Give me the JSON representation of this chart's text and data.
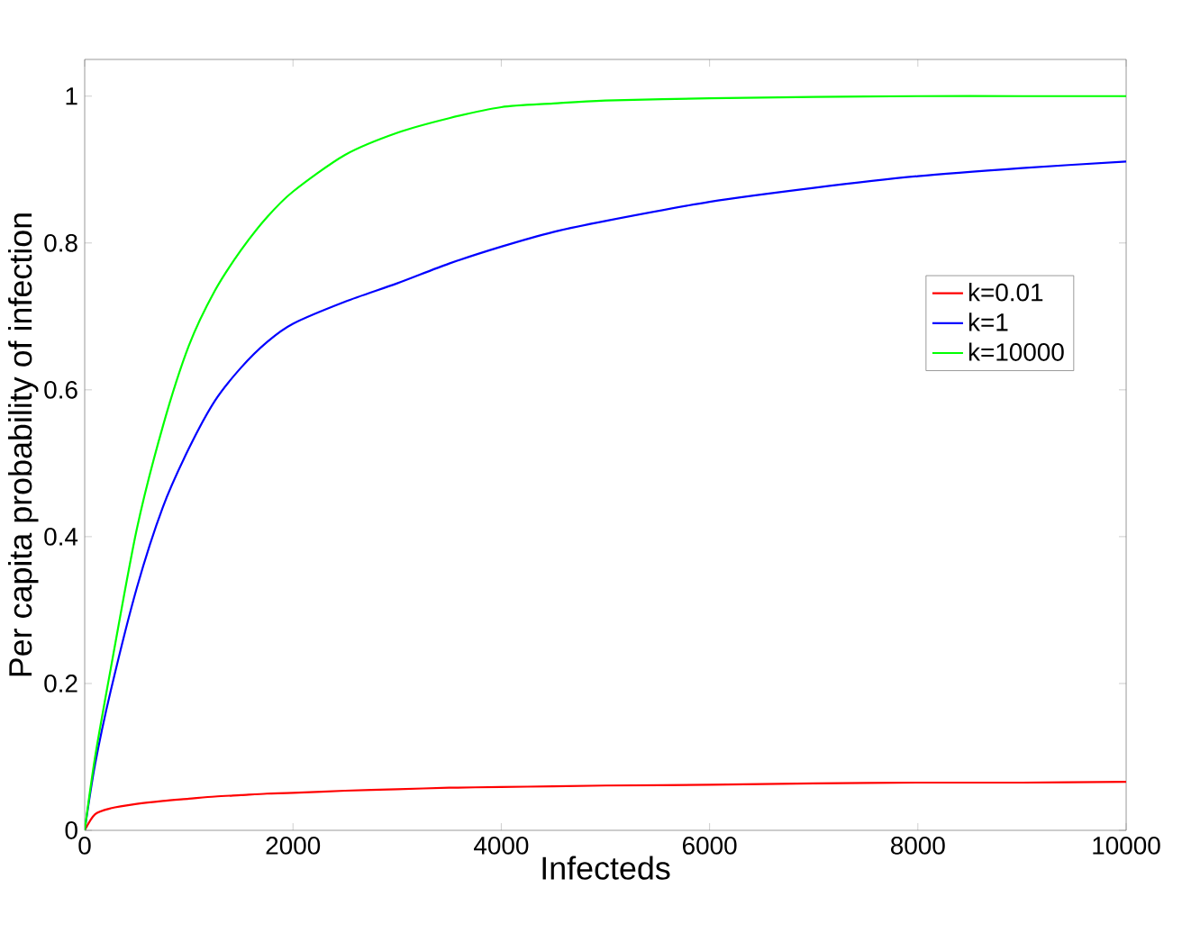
{
  "chart_data": {
    "type": "line",
    "xlabel": "Infecteds",
    "ylabel": "Per capita probability of infection",
    "x": [
      0,
      100,
      250,
      500,
      750,
      1000,
      1250,
      1500,
      1750,
      2000,
      2500,
      3000,
      3500,
      4000,
      4500,
      5000,
      6000,
      7000,
      8000,
      9000,
      10000
    ],
    "series": [
      {
        "name": "k=0.01",
        "color": "#ff0000",
        "values": [
          0,
          0.022,
          0.03,
          0.036,
          0.04,
          0.043,
          0.046,
          0.048,
          0.05,
          0.051,
          0.054,
          0.056,
          0.058,
          0.059,
          0.06,
          0.061,
          0.062,
          0.064,
          0.065,
          0.065,
          0.066
        ]
      },
      {
        "name": "k=1",
        "color": "#0000ff",
        "values": [
          0,
          0.09,
          0.19,
          0.33,
          0.44,
          0.52,
          0.585,
          0.63,
          0.665,
          0.69,
          0.72,
          0.745,
          0.772,
          0.795,
          0.815,
          0.83,
          0.856,
          0.875,
          0.891,
          0.902,
          0.911
        ]
      },
      {
        "name": "k=10000",
        "color": "#00ff00",
        "values": [
          0,
          0.1,
          0.22,
          0.41,
          0.55,
          0.66,
          0.735,
          0.79,
          0.835,
          0.87,
          0.92,
          0.95,
          0.97,
          0.985,
          0.99,
          0.994,
          0.997,
          0.999,
          1.0,
          1.0,
          1.0
        ]
      }
    ],
    "xlim": [
      0,
      10000
    ],
    "ylim": [
      0,
      1.05
    ],
    "xticks": [
      0,
      2000,
      4000,
      6000,
      8000,
      10000
    ],
    "yticks": [
      0,
      0.2,
      0.4,
      0.6,
      0.8,
      1
    ],
    "grid": false,
    "legend": "right",
    "marker": "none",
    "line_style": "solid"
  }
}
